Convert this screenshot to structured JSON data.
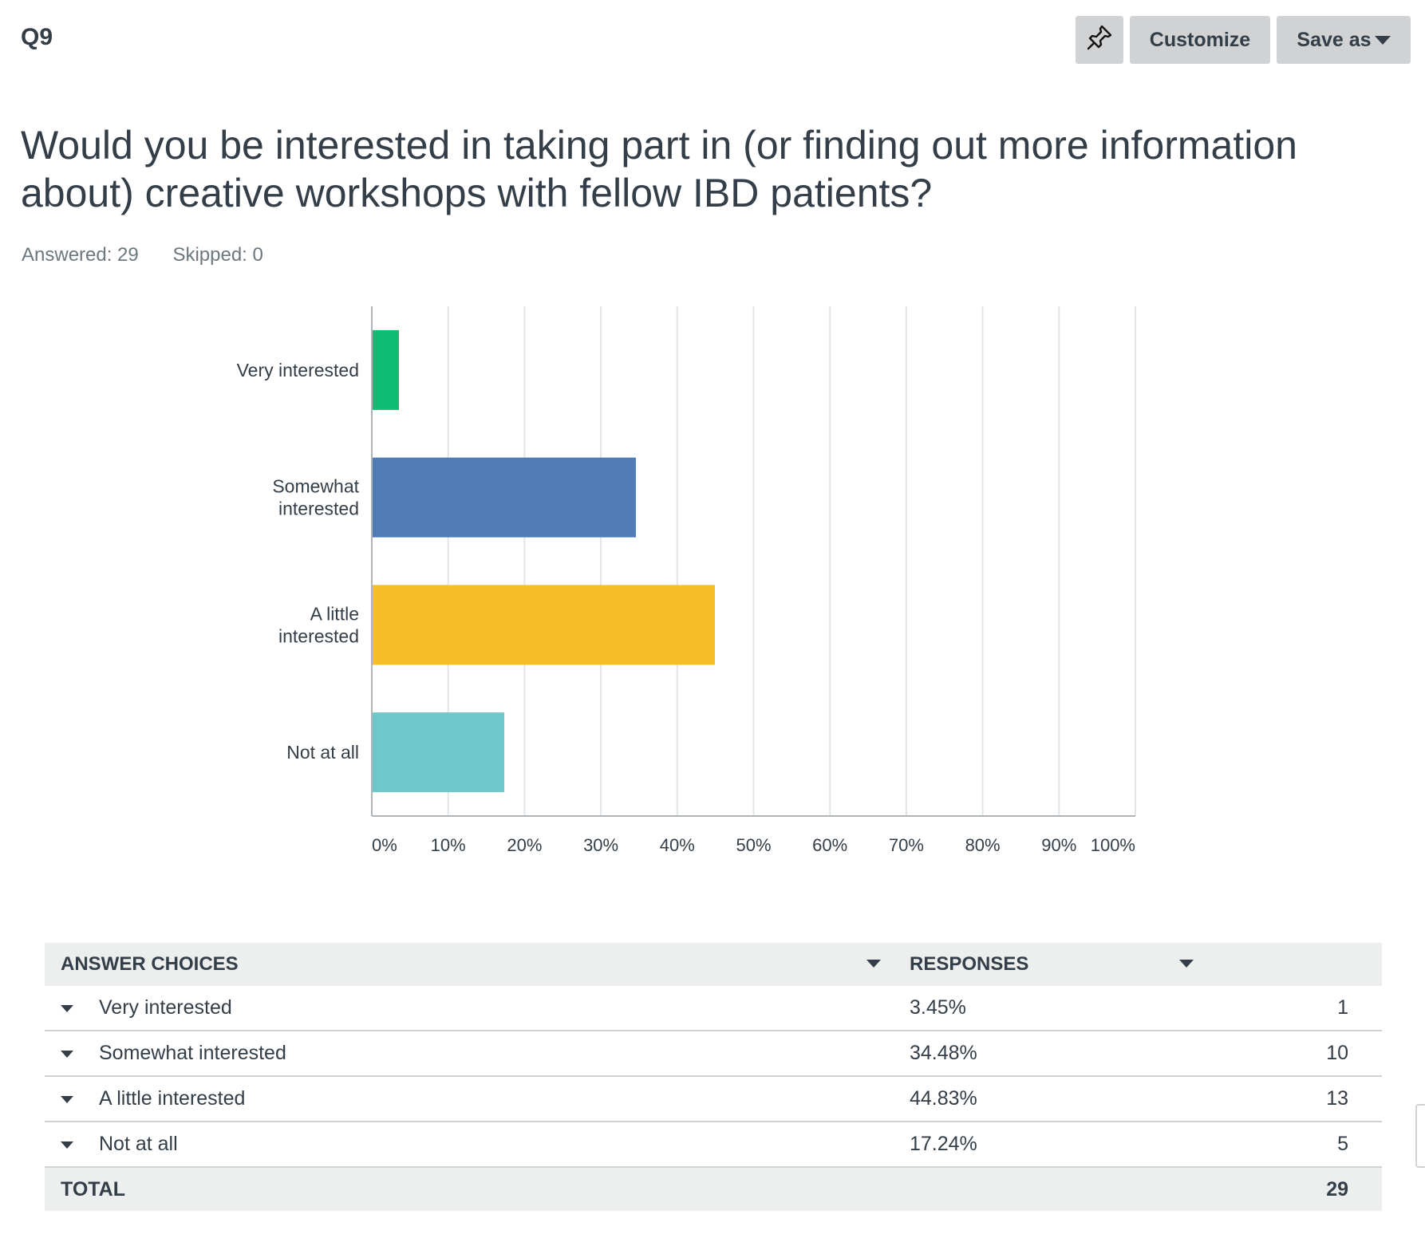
{
  "question_number": "Q9",
  "toolbar": {
    "pin_icon": "pushpin-icon",
    "customize_label": "Customize",
    "save_as_label": "Save as"
  },
  "question_title": "Would you be interested in taking part in (or finding out more information about) creative workshops with fellow IBD patients?",
  "stats": {
    "answered": "Answered: 29",
    "skipped": "Skipped: 0"
  },
  "chart_data": {
    "type": "bar",
    "orientation": "horizontal",
    "categories": [
      [
        "Very interested"
      ],
      [
        "Somewhat",
        "interested"
      ],
      [
        "A little",
        "interested"
      ],
      [
        "Not at all"
      ]
    ],
    "values": [
      3.45,
      34.48,
      44.83,
      17.24
    ],
    "colors": [
      "#0fbc71",
      "#507cb6",
      "#f8be2a",
      "#6ec8cb"
    ],
    "xlim": [
      0,
      100
    ],
    "x_ticks": [
      "0%",
      "10%",
      "20%",
      "30%",
      "40%",
      "50%",
      "60%",
      "70%",
      "80%",
      "90%",
      "100%"
    ],
    "grid": true
  },
  "table": {
    "headers": {
      "choices": "ANSWER CHOICES",
      "responses": "RESPONSES"
    },
    "rows": [
      {
        "choice": "Very interested",
        "percent": "3.45%",
        "count": "1"
      },
      {
        "choice": "Somewhat interested",
        "percent": "34.48%",
        "count": "10"
      },
      {
        "choice": "A little interested",
        "percent": "44.83%",
        "count": "13"
      },
      {
        "choice": "Not at all",
        "percent": "17.24%",
        "count": "5"
      }
    ],
    "total_label": "TOTAL",
    "total_value": "29"
  }
}
